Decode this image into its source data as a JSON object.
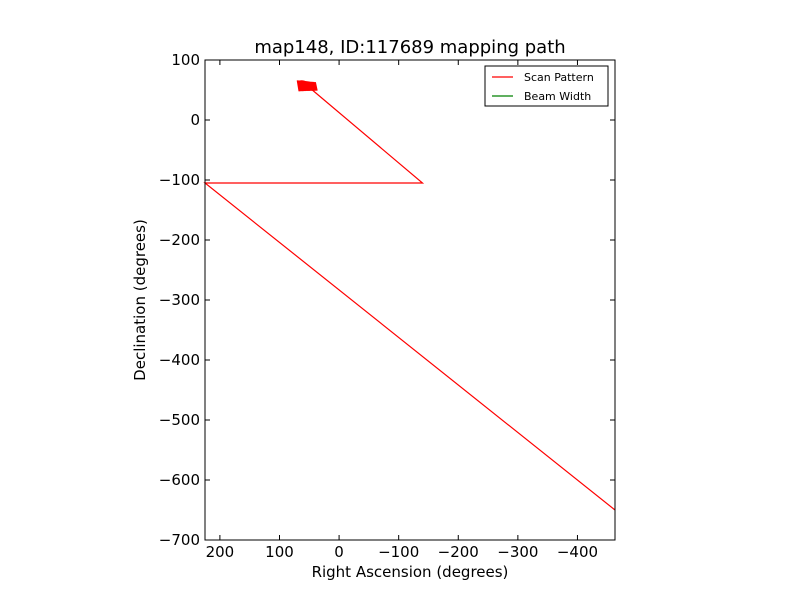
{
  "chart_data": {
    "type": "line",
    "title": "map148, ID:117689 mapping path",
    "xlabel": "Right Ascension (degrees)",
    "ylabel": "Declination (degrees)",
    "xlim": [
      225,
      -463
    ],
    "ylim": [
      -700,
      100
    ],
    "x_inverted": true,
    "xticks": [
      200,
      100,
      0,
      -100,
      -200,
      -300,
      -400
    ],
    "xtick_labels": [
      "200",
      "100",
      "0",
      "−100",
      "−200",
      "−300",
      "−400"
    ],
    "yticks": [
      100,
      0,
      -100,
      -200,
      -300,
      -400,
      -500,
      -600,
      -700
    ],
    "ytick_labels": [
      "100",
      "0",
      "−100",
      "−200",
      "−300",
      "−400",
      "−500",
      "−600",
      "−700"
    ],
    "grid": false,
    "legend_position": "top-right",
    "series": [
      {
        "name": "Scan Pattern",
        "color": "#ff0000",
        "x": [
          -463,
          225,
          -140,
          45
        ],
        "y": [
          -650,
          -105,
          -105,
          50
        ]
      },
      {
        "name": "Beam Width",
        "color": "#008000",
        "x": [],
        "y": []
      }
    ],
    "scan_cluster": {
      "color": "#ff0000",
      "ra_range": [
        40,
        70
      ],
      "dec_range": [
        48,
        66
      ]
    }
  }
}
